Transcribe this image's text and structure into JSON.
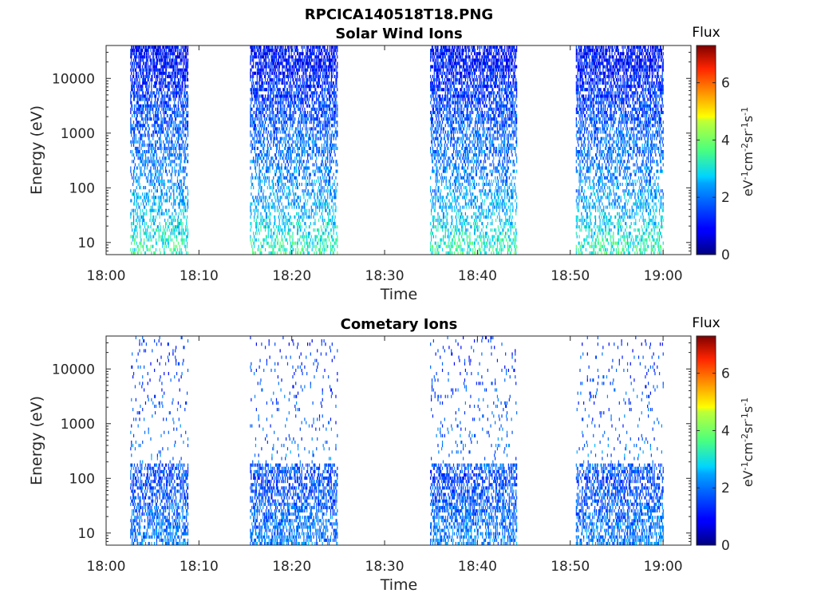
{
  "figure_title": "RPCICA140518T18.PNG",
  "chart_data": [
    {
      "type": "heatmap",
      "title": "Solar Wind Ions",
      "xlabel": "Time",
      "ylabel": "Energy (eV)",
      "xlim": [
        "18:00",
        "19:03"
      ],
      "ylim": [
        6,
        40000
      ],
      "yscale": "log",
      "x_ticks": [
        "18:00",
        "18:10",
        "18:20",
        "18:30",
        "18:40",
        "18:50",
        "19:00"
      ],
      "y_ticks": [
        10,
        100,
        1000,
        10000
      ],
      "y_tick_labels": [
        "10",
        "100",
        "1000",
        "10000"
      ],
      "colorbar": {
        "title": "Flux",
        "label": "eV-1cm-2sr-1s-1",
        "label_parts": [
          "eV",
          "-1",
          "cm",
          "-2",
          "sr",
          "-1",
          "s",
          "-1"
        ],
        "range": [
          0,
          7.3
        ],
        "ticks": [
          "0",
          "2",
          "4",
          "6"
        ],
        "colormap": "jet"
      },
      "active_intervals": [
        {
          "start": "18:02.6",
          "end": "18:08.8"
        },
        {
          "start": "18:15.5",
          "end": "18:24.9"
        },
        {
          "start": "18:34.9",
          "end": "18:44.2"
        },
        {
          "start": "18:50.6",
          "end": "19:00.0"
        }
      ],
      "flux_by_energy": [
        {
          "energy": 10,
          "flux": 3.2
        },
        {
          "energy": 30,
          "flux": 2.7
        },
        {
          "energy": 100,
          "flux": 2.2
        },
        {
          "energy": 300,
          "flux": 2.0
        },
        {
          "energy": 1000,
          "flux": 1.8
        },
        {
          "energy": 3000,
          "flux": 1.5
        },
        {
          "energy": 10000,
          "flux": 1.2
        },
        {
          "energy": 30000,
          "flux": 1.0
        }
      ]
    },
    {
      "type": "heatmap",
      "title": "Cometary Ions",
      "xlabel": "Time",
      "ylabel": "Energy (eV)",
      "xlim": [
        "18:00",
        "19:03"
      ],
      "ylim": [
        6,
        40000
      ],
      "yscale": "log",
      "x_ticks": [
        "18:00",
        "18:10",
        "18:20",
        "18:30",
        "18:40",
        "18:50",
        "19:00"
      ],
      "y_ticks": [
        10,
        100,
        1000,
        10000
      ],
      "y_tick_labels": [
        "10",
        "100",
        "1000",
        "10000"
      ],
      "colorbar": {
        "title": "Flux",
        "label": "eV-1cm-2sr-1s-1",
        "label_parts": [
          "eV",
          "-1",
          "cm",
          "-2",
          "sr",
          "-1",
          "s",
          "-1"
        ],
        "range": [
          0,
          7.3
        ],
        "ticks": [
          "0",
          "2",
          "4",
          "6"
        ],
        "colormap": "jet"
      },
      "active_intervals": [
        {
          "start": "18:02.6",
          "end": "18:08.8"
        },
        {
          "start": "18:15.5",
          "end": "18:24.9"
        },
        {
          "start": "18:34.9",
          "end": "18:44.2"
        },
        {
          "start": "18:50.6",
          "end": "19:00.0"
        }
      ],
      "flux_by_energy": [
        {
          "energy": 10,
          "flux": 2.0
        },
        {
          "energy": 30,
          "flux": 1.8
        },
        {
          "energy": 100,
          "flux": 1.5
        },
        {
          "energy": 300,
          "flux": 2.0
        },
        {
          "energy": 1000,
          "flux": 1.6
        },
        {
          "energy": 3000,
          "flux": 1.6
        },
        {
          "energy": 10000,
          "flux": 1.4
        },
        {
          "energy": 30000,
          "flux": 1.3
        }
      ]
    }
  ]
}
